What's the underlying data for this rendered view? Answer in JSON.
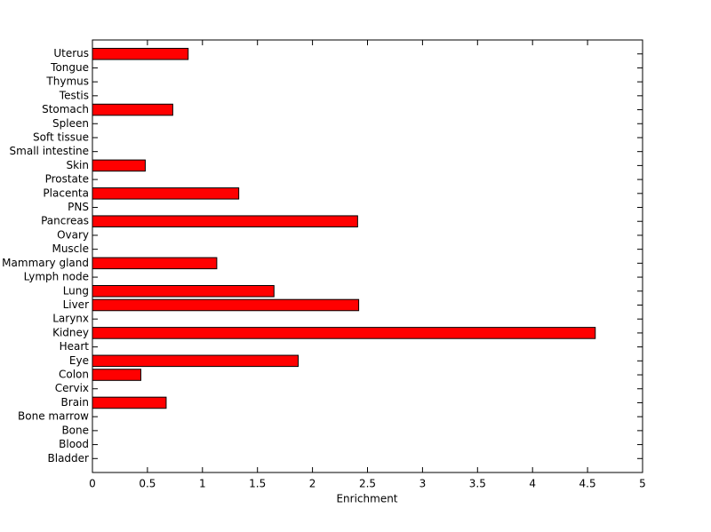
{
  "chart_data": {
    "type": "barh",
    "categories": [
      "Bladder",
      "Blood",
      "Bone",
      "Bone marrow",
      "Brain",
      "Cervix",
      "Colon",
      "Eye",
      "Heart",
      "Kidney",
      "Larynx",
      "Liver",
      "Lung",
      "Lymph node",
      "Mammary gland",
      "Muscle",
      "Ovary",
      "Pancreas",
      "PNS",
      "Placenta",
      "Prostate",
      "Skin",
      "Small intestine",
      "Soft tissue",
      "Spleen",
      "Stomach",
      "Testis",
      "Thymus",
      "Tongue",
      "Uterus"
    ],
    "values": [
      0,
      0,
      0,
      0,
      0.67,
      0,
      0.44,
      1.87,
      0,
      4.57,
      0,
      2.42,
      1.65,
      0,
      1.13,
      0,
      0,
      2.41,
      0,
      1.33,
      0,
      0.48,
      0,
      0,
      0,
      0.73,
      0,
      0,
      0,
      0.87
    ],
    "color": "#ff0000",
    "xlabel": "Enrichment",
    "xlim": [
      0,
      5
    ],
    "xticks": [
      0,
      0.5,
      1,
      1.5,
      2,
      2.5,
      3,
      3.5,
      4,
      4.5,
      5
    ],
    "grid": false
  }
}
